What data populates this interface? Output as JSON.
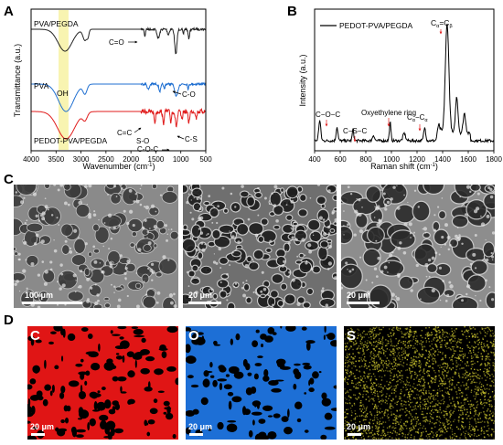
{
  "panels": {
    "a": "A",
    "b": "B",
    "c": "C",
    "d": "D"
  },
  "chart_data": [
    {
      "type": "line",
      "panel": "A",
      "xlabel": "Wavenumber (cm",
      "xlabel_sup": "-1",
      "xlabel_end": ")",
      "ylabel": "Transmittance (a.u.)",
      "xlim": [
        4000,
        500
      ],
      "x_ticks": [
        4000,
        3500,
        3000,
        2500,
        2000,
        1500,
        1000,
        500
      ],
      "x_tick_labels": [
        "4000",
        "3500",
        "3000",
        "2500",
        "2000",
        "1500",
        "1000",
        "500"
      ],
      "highlight_band": [
        3450,
        3250
      ],
      "series": [
        {
          "name": "PVA/PEGDA",
          "color": "#222222"
        },
        {
          "name": "PVA",
          "color": "#1f6fd1"
        },
        {
          "name": "PEDOT-PVA/PEGDA",
          "color": "#e01b1b"
        }
      ],
      "annotations": [
        "C=O",
        "OH",
        "C-O",
        "C=C",
        "S-O",
        "C-O-C",
        "C-S"
      ]
    },
    {
      "type": "line",
      "panel": "B",
      "xlabel": "Raman shift (cm",
      "xlabel_sup": "-1",
      "xlabel_end": ")",
      "ylabel": "Intensity (a.u.)",
      "xlim": [
        400,
        1800
      ],
      "x_ticks": [
        400,
        600,
        800,
        1000,
        1200,
        1400,
        1600,
        1800
      ],
      "x_tick_labels": [
        "400",
        "600",
        "800",
        "1000",
        "1200",
        "1400",
        "1600",
        "1800"
      ],
      "series": [
        {
          "name": "PEDOT-PVA/PEGDA",
          "color": "#000000"
        }
      ],
      "annotations": [
        "C−O−C",
        "C−S−C",
        "Oxyethylene ring",
        "C",
        "α",
        "−C",
        "α",
        "C",
        "α",
        "=C",
        "β"
      ]
    }
  ],
  "sem_images": [
    {
      "scale_label": "100 μm"
    },
    {
      "scale_label": "20 μm"
    },
    {
      "scale_label": "20 μm"
    }
  ],
  "eds_images": [
    {
      "element": "C",
      "color": "#e01515",
      "scale_label": "20 μm"
    },
    {
      "element": "O",
      "color": "#1d6fd6",
      "scale_label": "20 μm"
    },
    {
      "element": "S",
      "color": "#b9b32a",
      "scale_label": "20 μm"
    }
  ]
}
